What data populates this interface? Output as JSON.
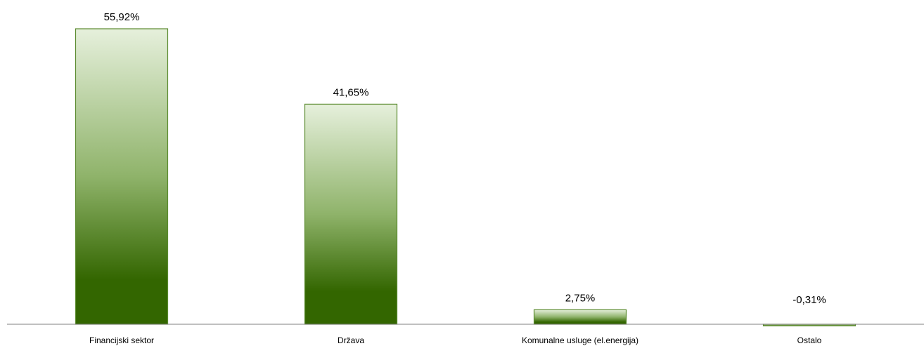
{
  "chart_data": {
    "type": "bar",
    "categories": [
      "Financijski sektor",
      "Država",
      "Komunalne usluge (el.energija)",
      "Ostalo"
    ],
    "values": [
      55.92,
      41.65,
      2.75,
      -0.31
    ],
    "value_labels": [
      "55,92%",
      "41,65%",
      "2,75%",
      "-0,31%"
    ],
    "title": "",
    "xlabel": "",
    "ylabel": "",
    "ylim": [
      -0.5,
      56
    ],
    "grid": false,
    "legend": "none",
    "colors": {
      "bar_top": "#e6f0dc",
      "bar_mid": "#8fb36a",
      "bar_bottom": "#336600",
      "bar_border": "#5a8a2e",
      "axis": "#808080"
    }
  }
}
